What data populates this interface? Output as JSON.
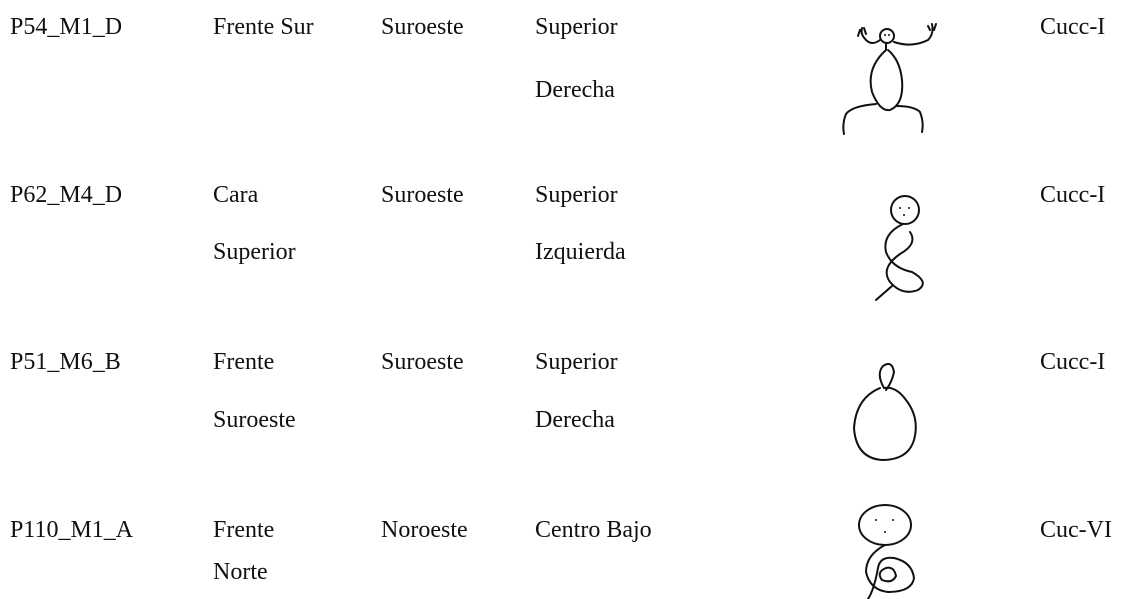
{
  "table": {
    "rows": [
      {
        "id": "P54_M1_D",
        "location": [
          "Frente Sur"
        ],
        "orientation": "Suroeste",
        "position": [
          "Superior",
          "Derecha"
        ],
        "type": "Cucc-I"
      },
      {
        "id": "P62_M4_D",
        "location": [
          "Cara",
          "Superior"
        ],
        "orientation": "Suroeste",
        "position": [
          "Superior",
          "Izquierda"
        ],
        "type": "Cucc-I"
      },
      {
        "id": "P51_M6_B",
        "location": [
          "Frente",
          "Suroeste"
        ],
        "orientation": "Suroeste",
        "position": [
          "Superior",
          "Derecha"
        ],
        "type": "Cucc-I"
      },
      {
        "id": "P110_M1_A",
        "location": [
          "Frente",
          "Norte"
        ],
        "orientation": "Noroeste",
        "position": [
          "Centro Bajo"
        ],
        "type": "Cuc-VI"
      }
    ]
  }
}
